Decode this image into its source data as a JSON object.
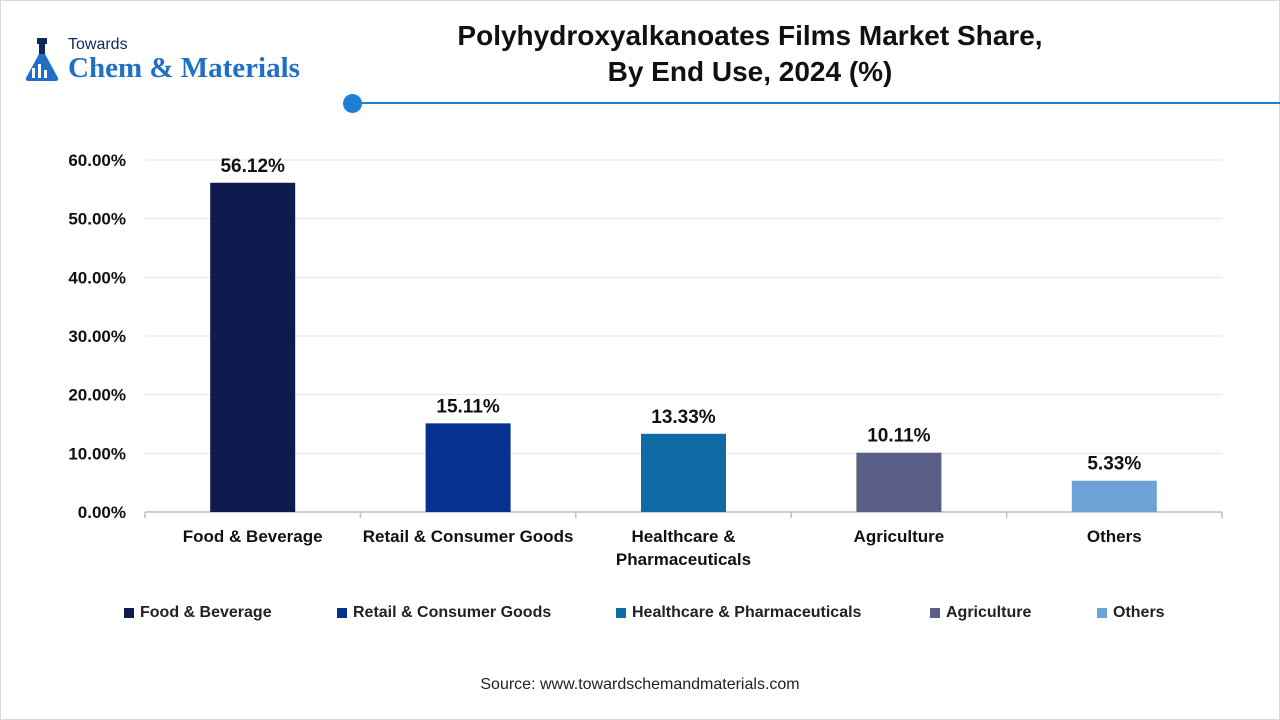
{
  "brand": {
    "top_text": "Towards",
    "main_text": "Chem & Materials"
  },
  "header": {
    "title_line1": "Polyhydroxyalkanoates Films Market Share,",
    "title_line2": "By End Use, 2024 (%)",
    "accent_color": "#1f7fd1"
  },
  "chart_data": {
    "type": "bar",
    "title": "Polyhydroxyalkanoates Films Market Share, By End Use, 2024 (%)",
    "categories": [
      "Food & Beverage",
      "Retail & Consumer Goods",
      "Healthcare & Pharmaceuticals",
      "Agriculture",
      "Others"
    ],
    "category_label_lines": [
      [
        "Food & Beverage"
      ],
      [
        "Retail & Consumer Goods"
      ],
      [
        "Healthcare &",
        "Pharmaceuticals"
      ],
      [
        "Agriculture"
      ],
      [
        "Others"
      ]
    ],
    "values": [
      56.12,
      15.11,
      13.33,
      10.11,
      5.33
    ],
    "data_labels": [
      "56.12%",
      "15.11%",
      "13.33%",
      "10.11%",
      "5.33%"
    ],
    "colors": [
      "#0f1a4f",
      "#073190",
      "#0f6aa5",
      "#5a5f87",
      "#6ca2d6"
    ],
    "ylim": [
      0,
      60
    ],
    "yticks": [
      "0.00%",
      "10.00%",
      "20.00%",
      "30.00%",
      "40.00%",
      "50.00%",
      "60.00%"
    ],
    "xlabel": "",
    "ylabel": "",
    "grid": true,
    "legend": "bottom"
  },
  "legend": {
    "items": [
      "Food & Beverage",
      "Retail & Consumer Goods",
      "Healthcare & Pharmaceuticals",
      "Agriculture",
      "Others"
    ]
  },
  "footer": {
    "source": "Source: www.towardschemandmaterials.com"
  }
}
